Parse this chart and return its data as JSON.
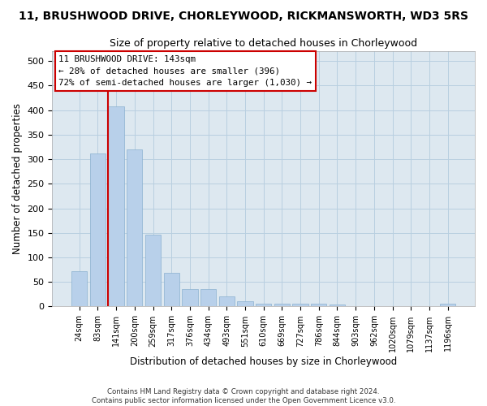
{
  "title_line1": "11, BRUSHWOOD DRIVE, CHORLEYWOOD, RICKMANSWORTH, WD3 5RS",
  "title_line2": "Size of property relative to detached houses in Chorleywood",
  "xlabel": "Distribution of detached houses by size in Chorleywood",
  "ylabel": "Number of detached properties",
  "categories": [
    "24sqm",
    "83sqm",
    "141sqm",
    "200sqm",
    "259sqm",
    "317sqm",
    "376sqm",
    "434sqm",
    "493sqm",
    "551sqm",
    "610sqm",
    "669sqm",
    "727sqm",
    "786sqm",
    "844sqm",
    "903sqm",
    "962sqm",
    "1020sqm",
    "1079sqm",
    "1137sqm",
    "1196sqm"
  ],
  "values": [
    72,
    312,
    407,
    320,
    147,
    69,
    35,
    35,
    20,
    11,
    5,
    6,
    5,
    5,
    4,
    0,
    0,
    0,
    0,
    0,
    5
  ],
  "bar_color": "#b8d0ea",
  "bar_edge_color": "#8ab0d0",
  "vline_color": "#cc0000",
  "annotation_text": "11 BRUSHWOOD DRIVE: 143sqm\n← 28% of detached houses are smaller (396)\n72% of semi-detached houses are larger (1,030) →",
  "annotation_box_color": "#ffffff",
  "annotation_box_edge_color": "#cc0000",
  "footnote": "Contains HM Land Registry data © Crown copyright and database right 2024.\nContains public sector information licensed under the Open Government Licence v3.0.",
  "bg_color": "#ffffff",
  "plot_bg_color": "#dde8f0",
  "grid_color": "#b8cfe0",
  "ylim": [
    0,
    520
  ],
  "yticks": [
    0,
    50,
    100,
    150,
    200,
    250,
    300,
    350,
    400,
    450,
    500
  ]
}
